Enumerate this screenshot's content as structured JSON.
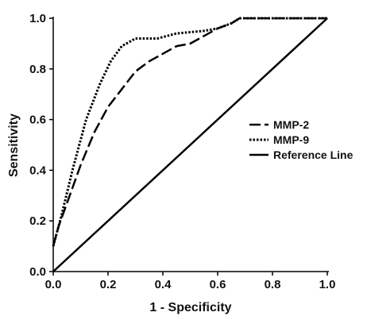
{
  "chart_data": {
    "type": "line",
    "title": "",
    "xlabel": "1 - Specificity",
    "ylabel": "Sensitivity",
    "xlim": [
      0.0,
      1.0
    ],
    "ylim": [
      0.0,
      1.0
    ],
    "x_ticks": [
      "0.0",
      "0.2",
      "0.4",
      "0.6",
      "0.8",
      "1.0"
    ],
    "y_ticks": [
      "0.0",
      "0.2",
      "0.4",
      "0.6",
      "0.8",
      "1.0"
    ],
    "grid": false,
    "legend": "right",
    "series": [
      {
        "name": "MMP-2",
        "style": "dashed",
        "color": "#000000",
        "points": [
          [
            0.0,
            0.1
          ],
          [
            0.02,
            0.18
          ],
          [
            0.05,
            0.27
          ],
          [
            0.1,
            0.42
          ],
          [
            0.15,
            0.55
          ],
          [
            0.2,
            0.65
          ],
          [
            0.25,
            0.72
          ],
          [
            0.3,
            0.79
          ],
          [
            0.35,
            0.83
          ],
          [
            0.4,
            0.86
          ],
          [
            0.45,
            0.89
          ],
          [
            0.5,
            0.9
          ],
          [
            0.55,
            0.93
          ],
          [
            0.6,
            0.96
          ],
          [
            0.65,
            0.98
          ],
          [
            0.68,
            1.0
          ],
          [
            0.75,
            1.0
          ],
          [
            1.0,
            1.0
          ]
        ]
      },
      {
        "name": "MMP-9",
        "style": "dotted",
        "color": "#000000",
        "points": [
          [
            0.0,
            0.1
          ],
          [
            0.03,
            0.22
          ],
          [
            0.07,
            0.4
          ],
          [
            0.12,
            0.6
          ],
          [
            0.17,
            0.74
          ],
          [
            0.21,
            0.83
          ],
          [
            0.25,
            0.89
          ],
          [
            0.3,
            0.92
          ],
          [
            0.38,
            0.92
          ],
          [
            0.45,
            0.94
          ],
          [
            0.55,
            0.95
          ],
          [
            0.6,
            0.96
          ],
          [
            0.65,
            0.98
          ],
          [
            0.68,
            1.0
          ],
          [
            1.0,
            1.0
          ]
        ]
      },
      {
        "name": "Reference Line",
        "style": "solid",
        "color": "#000000",
        "points": [
          [
            0.0,
            0.0
          ],
          [
            1.0,
            1.0
          ]
        ]
      }
    ]
  }
}
